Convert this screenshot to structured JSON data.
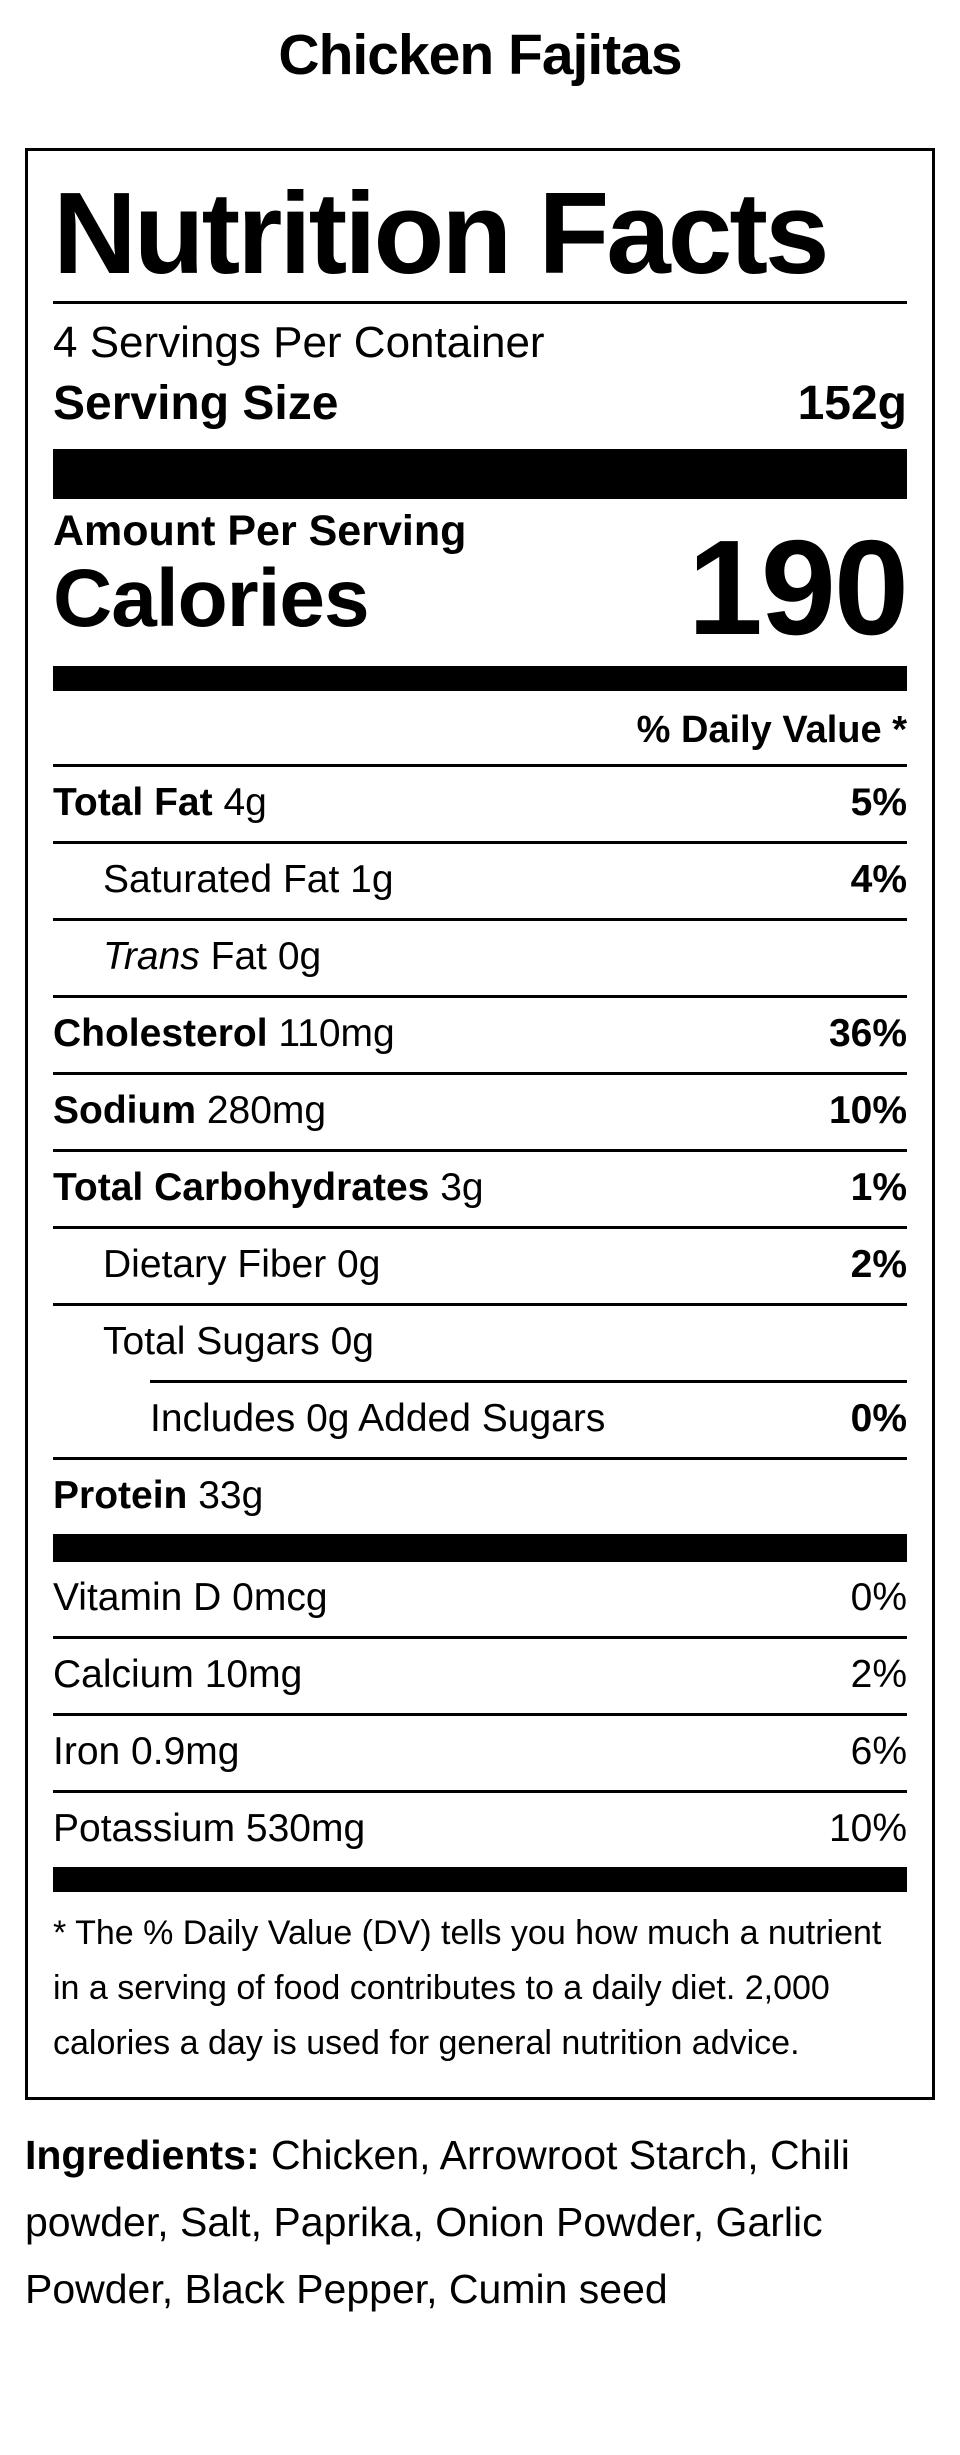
{
  "page": {
    "title": "Chicken Fajitas"
  },
  "label": {
    "heading": "Nutrition Facts",
    "servings_per_container": "4 Servings Per Container",
    "serving_size_label": "Serving Size",
    "serving_size_value": "152g",
    "amount_per_serving": "Amount Per Serving",
    "calories_label": "Calories",
    "calories_value": "190",
    "daily_value_header": "% Daily Value *",
    "rows": [
      {
        "bold": "Total Fat",
        "rest": " 4g",
        "dv": "5%"
      },
      {
        "rest": "Saturated Fat 1g",
        "dv": "4%"
      },
      {
        "italic": "Trans",
        "rest": " Fat 0g",
        "dv": ""
      },
      {
        "bold": "Cholesterol",
        "rest": " 110mg",
        "dv": "36%"
      },
      {
        "bold": "Sodium",
        "rest": " 280mg",
        "dv": "10%"
      },
      {
        "bold": "Total Carbohydrates",
        "rest": " 3g",
        "dv": "1%"
      },
      {
        "rest": "Dietary Fiber 0g",
        "dv": "2%"
      },
      {
        "rest": "Total Sugars 0g",
        "dv": ""
      },
      {
        "rest": "Includes 0g Added Sugars",
        "dv": "0%"
      },
      {
        "bold": "Protein",
        "rest": " 33g",
        "dv": ""
      },
      {
        "rest": "Vitamin D 0mcg",
        "dv": "0%"
      },
      {
        "rest": "Calcium 10mg",
        "dv": "2%"
      },
      {
        "rest": "Iron 0.9mg",
        "dv": "6%"
      },
      {
        "rest": "Potassium 530mg",
        "dv": "10%"
      }
    ],
    "footnote": "* The % Daily Value (DV) tells you how much a nutrient in a serving of food contributes to a daily diet. 2,000 calories a day is used for general nutrition advice."
  },
  "ingredients": {
    "label": "Ingredients:",
    "text": " Chicken, Arrowroot Starch, Chili powder, Salt, Paprika, Onion Powder, Garlic Powder, Black Pepper, Cumin seed"
  }
}
